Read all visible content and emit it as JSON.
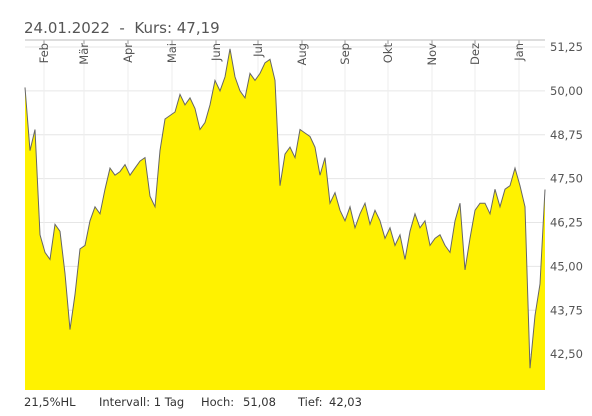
{
  "chart_data": {
    "type": "area",
    "title": "24.01.2022  -  Kurs: 47,19",
    "values": [
      50.1,
      48.3,
      48.9,
      45.9,
      45.4,
      45.2,
      46.2,
      46.0,
      44.8,
      43.2,
      44.2,
      45.5,
      45.6,
      46.3,
      46.7,
      46.5,
      47.2,
      47.8,
      47.6,
      47.7,
      47.9,
      47.6,
      47.8,
      48.0,
      48.1,
      47.0,
      46.7,
      48.3,
      49.2,
      49.3,
      49.4,
      49.9,
      49.6,
      49.8,
      49.5,
      48.9,
      49.1,
      49.6,
      50.3,
      50.0,
      50.4,
      51.2,
      50.4,
      50.0,
      49.8,
      50.5,
      50.3,
      50.5,
      50.8,
      50.9,
      50.3,
      47.3,
      48.2,
      48.4,
      48.1,
      48.9,
      48.8,
      48.7,
      48.4,
      47.6,
      48.1,
      46.8,
      47.1,
      46.6,
      46.3,
      46.7,
      46.1,
      46.5,
      46.8,
      46.2,
      46.6,
      46.3,
      45.8,
      46.1,
      45.6,
      45.9,
      45.2,
      46.0,
      46.5,
      46.1,
      46.3,
      45.6,
      45.8,
      45.9,
      45.6,
      45.4,
      46.3,
      46.8,
      44.9,
      45.8,
      46.6,
      46.8,
      46.8,
      46.5,
      47.2,
      46.7,
      47.2,
      47.3,
      47.8,
      47.3,
      46.7,
      42.1,
      43.6,
      44.5,
      47.19
    ],
    "color": "#fff200",
    "line_color": "#666666",
    "xlim": [
      0,
      104
    ],
    "xticks": [
      {
        "value": 3.8,
        "label": "Feb"
      },
      {
        "value": 11.8,
        "label": "Mär"
      },
      {
        "value": 20.6,
        "label": "Apr"
      },
      {
        "value": 29.4,
        "label": "Mai"
      },
      {
        "value": 38.2,
        "label": "Jun"
      },
      {
        "value": 46.6,
        "label": "Jul"
      },
      {
        "value": 55.4,
        "label": "Aug"
      },
      {
        "value": 64,
        "label": "Sep"
      },
      {
        "value": 72.6,
        "label": "Okt"
      },
      {
        "value": 81.4,
        "label": "Nov"
      },
      {
        "value": 90,
        "label": "Dez"
      },
      {
        "value": 98.8,
        "label": "Jan"
      }
    ],
    "ylim": [
      41.48,
      51.45
    ],
    "yticks": [
      {
        "value": 42.5,
        "label": "42,50"
      },
      {
        "value": 43.75,
        "label": "43,75"
      },
      {
        "value": 45,
        "label": "45,00"
      },
      {
        "value": 46.25,
        "label": "46,25"
      },
      {
        "value": 47.5,
        "label": "47,50"
      },
      {
        "value": 48.75,
        "label": "48,75"
      },
      {
        "value": 50,
        "label": "50,00"
      },
      {
        "value": 51.25,
        "label": "51,25"
      }
    ],
    "grid": true,
    "footer": {
      "range": "21,5%HL",
      "interval": "Intervall: 1 Tag",
      "high_label": "Hoch:",
      "high": "51,08",
      "low_label": "Tief:",
      "low": "42,03"
    }
  }
}
